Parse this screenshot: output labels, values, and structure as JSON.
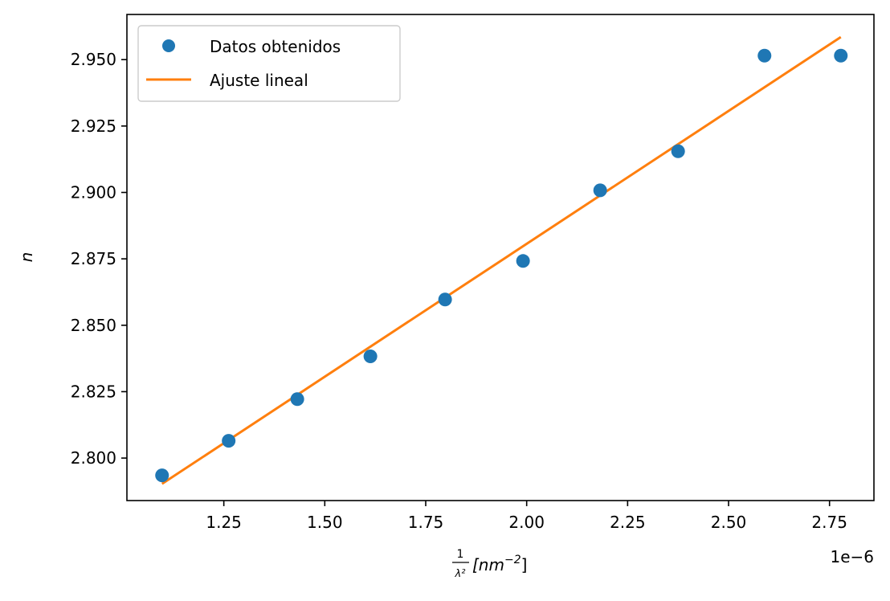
{
  "chart_data": {
    "type": "scatter",
    "ylabel": "n",
    "xlabel": {
      "numerator": "1",
      "denominator": "λ²",
      "unit_prefix": "[nm",
      "unit_exp": "−2",
      "unit_suffix": "]"
    },
    "x_offset_text": "1e−6",
    "xlim": [
      1.01e-06,
      2.86e-06
    ],
    "ylim": [
      2.784,
      2.967
    ],
    "x_ticks": [
      1.25e-06,
      1.5e-06,
      1.75e-06,
      2e-06,
      2.25e-06,
      2.5e-06,
      2.75e-06
    ],
    "x_tick_labels": [
      "1.25",
      "1.50",
      "1.75",
      "2.00",
      "2.25",
      "2.50",
      "2.75"
    ],
    "y_ticks": [
      2.8,
      2.825,
      2.85,
      2.875,
      2.9,
      2.925,
      2.95
    ],
    "y_tick_labels": [
      "2.800",
      "2.825",
      "2.850",
      "2.875",
      "2.900",
      "2.925",
      "2.950"
    ],
    "grid": false,
    "legend_position": "top-left",
    "series": [
      {
        "name": "Datos obtenidos",
        "kind": "markers",
        "color": "#1f77b4",
        "x": [
          1.097e-06,
          1.262e-06,
          1.432e-06,
          1.613e-06,
          1.798e-06,
          1.991e-06,
          2.182e-06,
          2.375e-06,
          2.589e-06,
          2.778e-06
        ],
        "y": [
          2.7935,
          2.8065,
          2.8222,
          2.8383,
          2.8597,
          2.8742,
          2.9008,
          2.9155,
          2.9515,
          2.9515
        ]
      },
      {
        "name": "Ajuste lineal",
        "kind": "line",
        "color": "#ff7f0e",
        "x": [
          1.097e-06,
          2.778e-06
        ],
        "y": [
          2.7903,
          2.9585
        ]
      }
    ]
  }
}
